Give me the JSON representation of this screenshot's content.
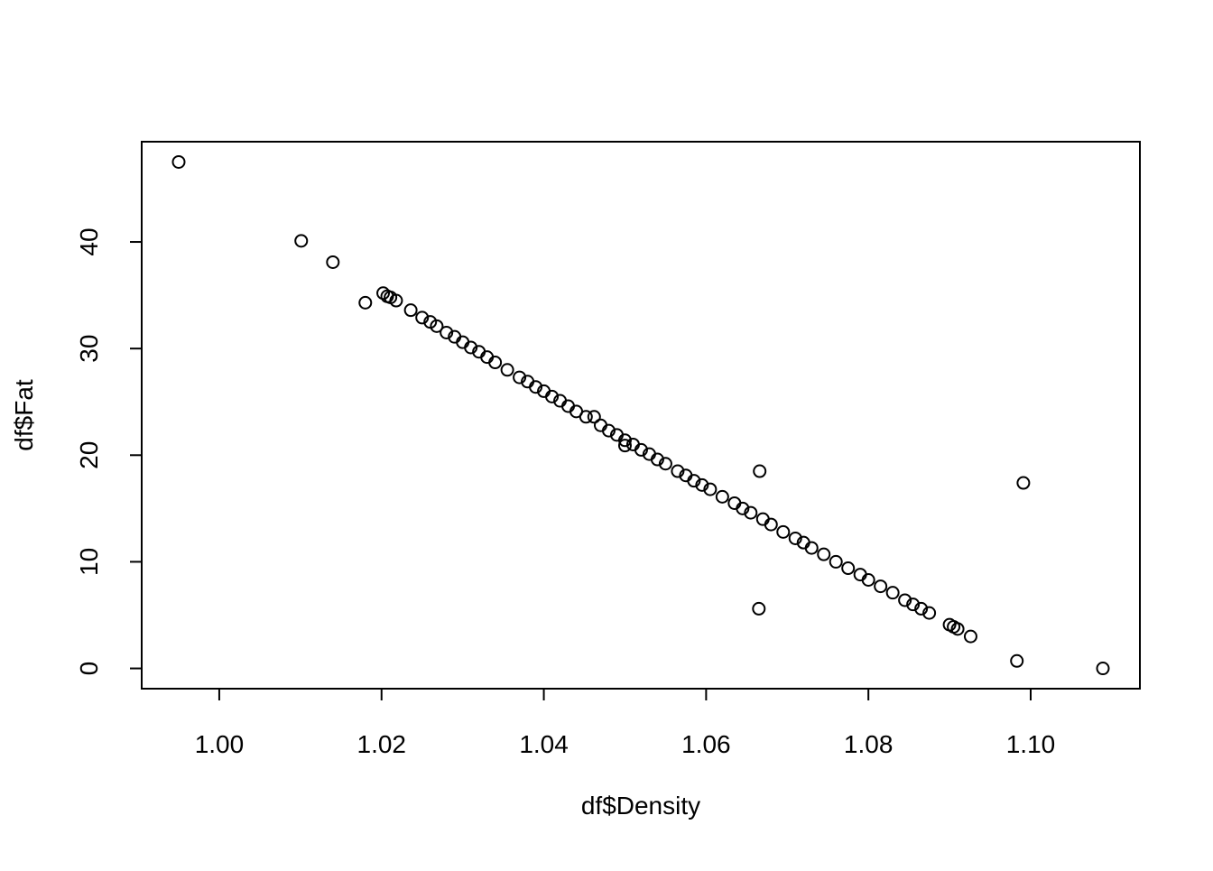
{
  "chart_data": {
    "type": "scatter",
    "xlabel": "df$Density",
    "ylabel": "df$Fat",
    "x": [
      0.995,
      1.0101,
      1.014,
      1.018,
      1.0202,
      1.0207,
      1.0211,
      1.0218,
      1.0236,
      1.025,
      1.026,
      1.0268,
      1.028,
      1.029,
      1.03,
      1.031,
      1.032,
      1.033,
      1.034,
      1.0355,
      1.037,
      1.038,
      1.039,
      1.04,
      1.041,
      1.042,
      1.043,
      1.044,
      1.0452,
      1.0462,
      1.047,
      1.048,
      1.049,
      1.05,
      1.05,
      1.051,
      1.052,
      1.053,
      1.054,
      1.055,
      1.0565,
      1.0575,
      1.0585,
      1.0595,
      1.0605,
      1.062,
      1.0635,
      1.0645,
      1.0655,
      1.0666,
      1.0665,
      1.067,
      1.068,
      1.0695,
      1.071,
      1.072,
      1.073,
      1.0745,
      1.076,
      1.0775,
      1.079,
      1.08,
      1.0815,
      1.083,
      1.0845,
      1.0855,
      1.0865,
      1.0875,
      1.09,
      1.0905,
      1.091,
      1.0926,
      1.0991,
      1.0983,
      1.1089
    ],
    "values": [
      47.5,
      40.1,
      38.1,
      34.3,
      35.2,
      34.9,
      34.8,
      34.5,
      33.6,
      32.9,
      32.5,
      32.1,
      31.5,
      31.1,
      30.6,
      30.1,
      29.7,
      29.2,
      28.7,
      28.0,
      27.3,
      26.9,
      26.4,
      26.0,
      25.5,
      25.1,
      24.6,
      24.1,
      23.6,
      23.6,
      22.8,
      22.3,
      21.9,
      20.9,
      21.4,
      21.0,
      20.5,
      20.1,
      19.6,
      19.2,
      18.5,
      18.1,
      17.6,
      17.2,
      16.8,
      16.1,
      15.5,
      15.0,
      14.6,
      18.5,
      5.6,
      14.0,
      13.5,
      12.8,
      12.2,
      11.8,
      11.3,
      10.7,
      10.0,
      9.4,
      8.8,
      8.3,
      7.7,
      7.1,
      6.4,
      6.0,
      5.6,
      5.2,
      4.1,
      3.9,
      3.7,
      3.0,
      17.4,
      0.7,
      0.0
    ],
    "color": "#000000",
    "xlim": [
      0.99044,
      1.11346
    ],
    "xticks": [
      {
        "value": 1.0,
        "label": "1.00"
      },
      {
        "value": 1.02,
        "label": "1.02"
      },
      {
        "value": 1.04,
        "label": "1.04"
      },
      {
        "value": 1.06,
        "label": "1.06"
      },
      {
        "value": 1.08,
        "label": "1.08"
      },
      {
        "value": 1.1,
        "label": "1.10"
      }
    ],
    "ylim": [
      -1.9,
      49.4
    ],
    "yticks": [
      0,
      10,
      20,
      30,
      40
    ]
  }
}
